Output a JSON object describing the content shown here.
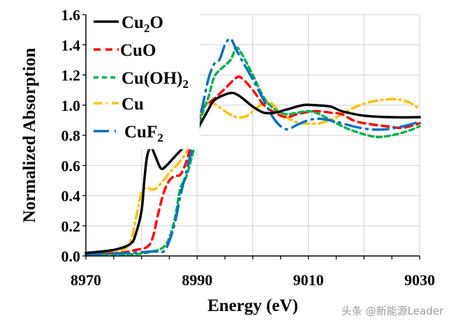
{
  "chart_data": {
    "type": "line",
    "xlabel": "Energy (eV)",
    "ylabel": "Normalized Absorption",
    "xlim": [
      8970,
      9030
    ],
    "ylim": [
      0,
      1.6
    ],
    "xticks": [
      "8970",
      "8990",
      "9010",
      "9030"
    ],
    "xtick_values": [
      8970,
      8990,
      9010,
      9030
    ],
    "yticks": [
      "0.0",
      "0.2",
      "0.4",
      "0.6",
      "0.8",
      "1.0",
      "1.2",
      "1.4",
      "1.6"
    ],
    "ytick_values": [
      0,
      0.2,
      0.4,
      0.6,
      0.8,
      1.0,
      1.2,
      1.4,
      1.6
    ],
    "grid": true,
    "legend_position": "top-left",
    "series": [
      {
        "name": "Cu2O",
        "label_main": "Cu",
        "label_sub": "2",
        "label_tail": "O",
        "color": "#000000",
        "dash": "solid",
        "x": [
          8970,
          8975,
          8978,
          8979,
          8980,
          8980.5,
          8981,
          8981.7,
          8982.5,
          8983.5,
          8984.5,
          8986,
          8988,
          8990,
          8992,
          8993,
          8995,
          8996.5,
          8998,
          9000,
          9002,
          9004,
          9006,
          9009,
          9011,
          9014,
          9016,
          9020,
          9025,
          9030
        ],
        "y": [
          0.02,
          0.04,
          0.08,
          0.15,
          0.3,
          0.5,
          0.66,
          0.72,
          0.66,
          0.58,
          0.6,
          0.66,
          0.74,
          0.84,
          0.97,
          1.03,
          1.07,
          1.08,
          1.05,
          0.99,
          0.95,
          0.95,
          0.97,
          1.0,
          1.0,
          0.99,
          0.96,
          0.93,
          0.92,
          0.92
        ]
      },
      {
        "name": "CuO",
        "label_main": "CuO",
        "label_sub": "",
        "label_tail": "",
        "color": "#ff0000",
        "dash": "dash",
        "x": [
          8970,
          8976,
          8979,
          8981,
          8982,
          8983,
          8984,
          8985,
          8986,
          8987,
          8988,
          8989,
          8990,
          8991,
          8993,
          8995,
          8997,
          8998,
          9000,
          9002,
          9004,
          9006,
          9008,
          9011,
          9014,
          9016,
          9018,
          9020,
          9024,
          9027,
          9030
        ],
        "y": [
          0.01,
          0.02,
          0.04,
          0.06,
          0.12,
          0.28,
          0.42,
          0.5,
          0.53,
          0.54,
          0.62,
          0.75,
          0.88,
          0.98,
          1.04,
          1.11,
          1.18,
          1.18,
          1.1,
          1.0,
          0.95,
          0.92,
          0.94,
          0.96,
          0.95,
          0.94,
          0.9,
          0.88,
          0.86,
          0.85,
          0.88
        ]
      },
      {
        "name": "Cu(OH)2",
        "label_main": "Cu(OH)",
        "label_sub": "2",
        "label_tail": "",
        "color": "#00b050",
        "dash": "shortdash",
        "x": [
          8970,
          8978,
          8982,
          8984,
          8985,
          8986,
          8987,
          8988,
          8989,
          8990,
          8991,
          8992,
          8993,
          8994,
          8996,
          8997,
          8998,
          9000,
          9002,
          9004,
          9006,
          9008,
          9010,
          9012,
          9015,
          9018,
          9022,
          9025,
          9028,
          9030
        ],
        "y": [
          0.01,
          0.01,
          0.03,
          0.06,
          0.12,
          0.25,
          0.45,
          0.52,
          0.65,
          0.8,
          0.95,
          1.05,
          1.18,
          1.23,
          1.3,
          1.38,
          1.34,
          1.2,
          1.05,
          0.97,
          0.94,
          0.95,
          0.96,
          0.94,
          0.88,
          0.83,
          0.79,
          0.8,
          0.83,
          0.86
        ]
      },
      {
        "name": "Cu",
        "label_main": "Cu",
        "label_sub": "",
        "label_tail": "",
        "color": "#ffc000",
        "dash": "dashdot",
        "x": [
          8970,
          8976,
          8978,
          8979,
          8980,
          8981,
          8982,
          8983,
          8985,
          8987,
          8989,
          8990,
          8991,
          8992,
          8993,
          8995,
          8997,
          8999,
          9001,
          9003,
          9005,
          9007,
          9009,
          9012,
          9015,
          9018,
          9021,
          9025,
          9028,
          9030
        ],
        "y": [
          0.01,
          0.03,
          0.1,
          0.25,
          0.42,
          0.45,
          0.44,
          0.46,
          0.55,
          0.63,
          0.75,
          0.85,
          0.97,
          1.01,
          1.01,
          0.96,
          0.92,
          0.93,
          0.99,
          1.02,
          0.95,
          0.9,
          0.88,
          0.88,
          0.92,
          0.98,
          1.02,
          1.04,
          1.02,
          0.97
        ]
      },
      {
        "name": "CuF2",
        "label_main": "CuF",
        "label_sub": "2",
        "label_tail": "",
        "color": "#0070c0",
        "dash": "longdashdot",
        "x": [
          8970,
          8978,
          8982,
          8984,
          8985,
          8986,
          8987,
          8988,
          8989,
          8990,
          8991,
          8992,
          8993,
          8994,
          8995,
          8996,
          8997,
          8998,
          9000,
          9002,
          9004,
          9006,
          9008,
          9010,
          9012,
          9015,
          9018,
          9021,
          9024,
          9027,
          9030
        ],
        "y": [
          0.01,
          0.02,
          0.03,
          0.03,
          0.1,
          0.22,
          0.4,
          0.55,
          0.7,
          0.85,
          1.0,
          1.17,
          1.27,
          1.3,
          1.4,
          1.44,
          1.37,
          1.3,
          1.17,
          1.03,
          0.9,
          0.84,
          0.87,
          0.9,
          0.91,
          0.89,
          0.86,
          0.84,
          0.84,
          0.86,
          0.89
        ]
      }
    ]
  },
  "watermark": "头条 @新能源Leader"
}
